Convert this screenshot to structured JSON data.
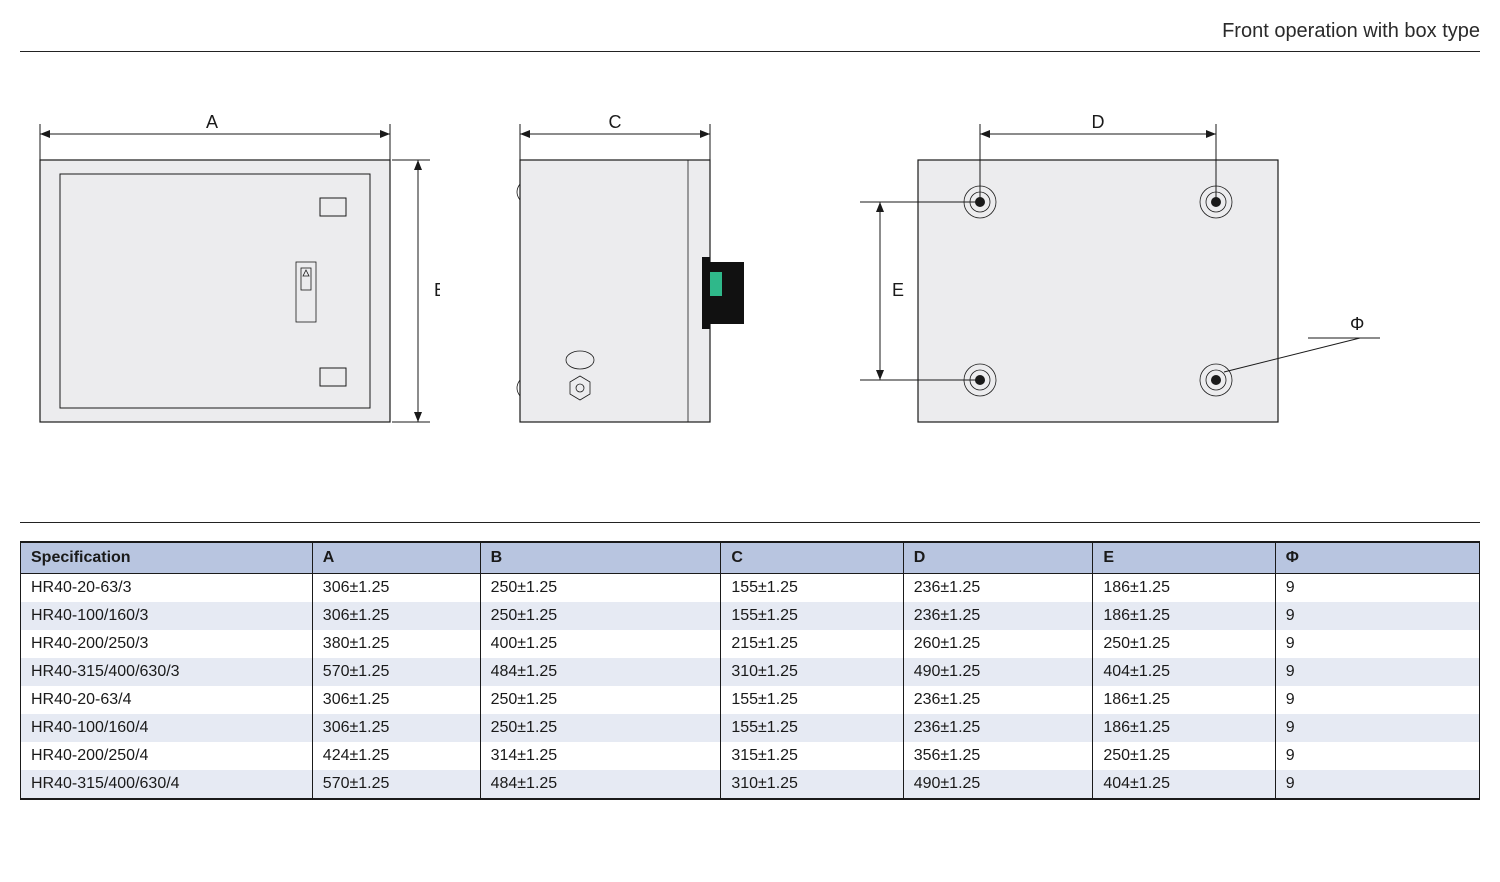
{
  "header": {
    "title": "Front operation with box type"
  },
  "diagrams": {
    "labels": {
      "A": "A",
      "B": "B",
      "C": "C",
      "D": "D",
      "E": "E",
      "phi": "Φ"
    },
    "colors": {
      "box_fill": "#ececee",
      "stroke": "#1a1a1a",
      "handle_accent": "#2fb88a",
      "handle_body": "#111111"
    }
  },
  "table": {
    "columns": [
      "Specification",
      "A",
      "B",
      "C",
      "D",
      "E",
      "Φ"
    ],
    "col_widths_pct": [
      20,
      11.5,
      16.5,
      12.5,
      13,
      12.5,
      14
    ],
    "header_bg": "#b8c5e0",
    "alt_bg": "#e6eaf3",
    "rows": [
      [
        "HR40-20-63/3",
        "306±1.25",
        "250±1.25",
        "155±1.25",
        "236±1.25",
        "186±1.25",
        "9"
      ],
      [
        "HR40-100/160/3",
        "306±1.25",
        "250±1.25",
        "155±1.25",
        "236±1.25",
        "186±1.25",
        "9"
      ],
      [
        "HR40-200/250/3",
        "380±1.25",
        "400±1.25",
        "215±1.25",
        "260±1.25",
        "250±1.25",
        "9"
      ],
      [
        "HR40-315/400/630/3",
        "570±1.25",
        "484±1.25",
        "310±1.25",
        "490±1.25",
        "404±1.25",
        "9"
      ],
      [
        "HR40-20-63/4",
        "306±1.25",
        "250±1.25",
        "155±1.25",
        "236±1.25",
        "186±1.25",
        "9"
      ],
      [
        "HR40-100/160/4",
        "306±1.25",
        "250±1.25",
        "155±1.25",
        "236±1.25",
        "186±1.25",
        "9"
      ],
      [
        "HR40-200/250/4",
        "424±1.25",
        "314±1.25",
        "315±1.25",
        "356±1.25",
        "250±1.25",
        "9"
      ],
      [
        "HR40-315/400/630/4",
        "570±1.25",
        "484±1.25",
        "310±1.25",
        "490±1.25",
        "404±1.25",
        "9"
      ]
    ]
  }
}
